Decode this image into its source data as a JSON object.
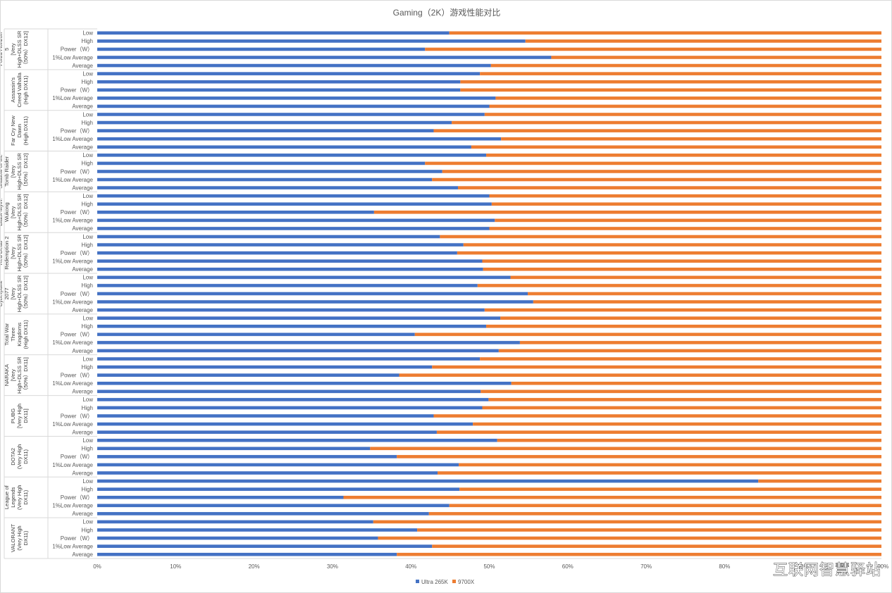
{
  "watermark": "互联网智慧驿站",
  "chart_data": {
    "type": "bar",
    "orientation": "horizontal",
    "stacked": "100%",
    "title": "Gaming（2K）游戏性能对比",
    "xlim": [
      0,
      1
    ],
    "xticks": [
      "0%",
      "10%",
      "20%",
      "30%",
      "40%",
      "50%",
      "60%",
      "70%",
      "80%",
      "90%",
      "100%"
    ],
    "grid": false,
    "legend_position": "bottom",
    "colors": {
      "Ultra 265K": "#4472c4",
      "9700X": "#ed7d31"
    },
    "categories": [
      "Low",
      "High",
      "Power（W）",
      "1%Low Average",
      "Average"
    ],
    "series": [
      {
        "name": "Ultra 265K"
      },
      {
        "name": "9700X"
      }
    ],
    "groups": [
      {
        "name": [
          "Forza Horizon",
          "5",
          "[Very",
          "High+DLSS SR",
          "（50%）DX12]"
        ],
        "values": [
          0.449,
          0.546,
          0.418,
          0.579,
          0.502
        ]
      },
      {
        "name": [
          "Assassin's",
          "Creed Valhalla",
          "(High DX11)"
        ],
        "values": [
          0.488,
          0.463,
          0.463,
          0.508,
          0.5
        ]
      },
      {
        "name": [
          "Far Cry New",
          "Dawn",
          "(High DX11)"
        ],
        "values": [
          0.494,
          0.452,
          0.429,
          0.515,
          0.477
        ]
      },
      {
        "name": [
          "Shadow of the",
          "Tomb Raider",
          "[Very",
          "High+DLSS SR",
          "（50%）DX12]"
        ],
        "values": [
          0.496,
          0.418,
          0.44,
          0.427,
          0.46
        ]
      },
      {
        "name": [
          "Black Myth:",
          "Wukong",
          "[Very",
          "High+DLSS SR",
          "（50%）DX12]"
        ],
        "values": [
          0.5,
          0.503,
          0.353,
          0.507,
          0.5
        ]
      },
      {
        "name": [
          "Red Dead",
          "Redemption 2",
          "[Very",
          "High+DLSS SR",
          "（50%）DX12]"
        ],
        "values": [
          0.437,
          0.467,
          0.459,
          0.491,
          0.492
        ]
      },
      {
        "name": [
          "Cyberpunk",
          "2077",
          "[Very",
          "High+DLSS SR",
          "（50%）DX12]"
        ],
        "values": [
          0.527,
          0.485,
          0.549,
          0.556,
          0.494
        ]
      },
      {
        "name": [
          "Total War",
          "Three",
          "Kingdoms",
          "(High DX11)"
        ],
        "values": [
          0.514,
          0.496,
          0.405,
          0.539,
          0.512
        ]
      },
      {
        "name": [
          "NARAKA",
          "[Very",
          "High+DLSS SR",
          "（50%）DX11]"
        ],
        "values": [
          0.488,
          0.427,
          0.385,
          0.528,
          0.489
        ]
      },
      {
        "name": [
          "PUBG",
          "[Very High",
          "DX11]"
        ],
        "values": [
          0.499,
          0.491,
          0.429,
          0.479,
          0.433
        ]
      },
      {
        "name": [
          "DOTA2",
          "(Very High",
          "DX11)"
        ],
        "values": [
          0.51,
          0.348,
          0.382,
          0.461,
          0.434
        ]
      },
      {
        "name": [
          "League of",
          "Legends",
          "(Very High",
          "DX11)"
        ],
        "values": [
          0.843,
          0.462,
          0.314,
          0.449,
          0.423
        ]
      },
      {
        "name": [
          "VALORANT",
          "(Very High",
          "DX11)"
        ],
        "values": [
          0.352,
          0.408,
          0.358,
          0.427,
          0.382
        ]
      }
    ]
  }
}
